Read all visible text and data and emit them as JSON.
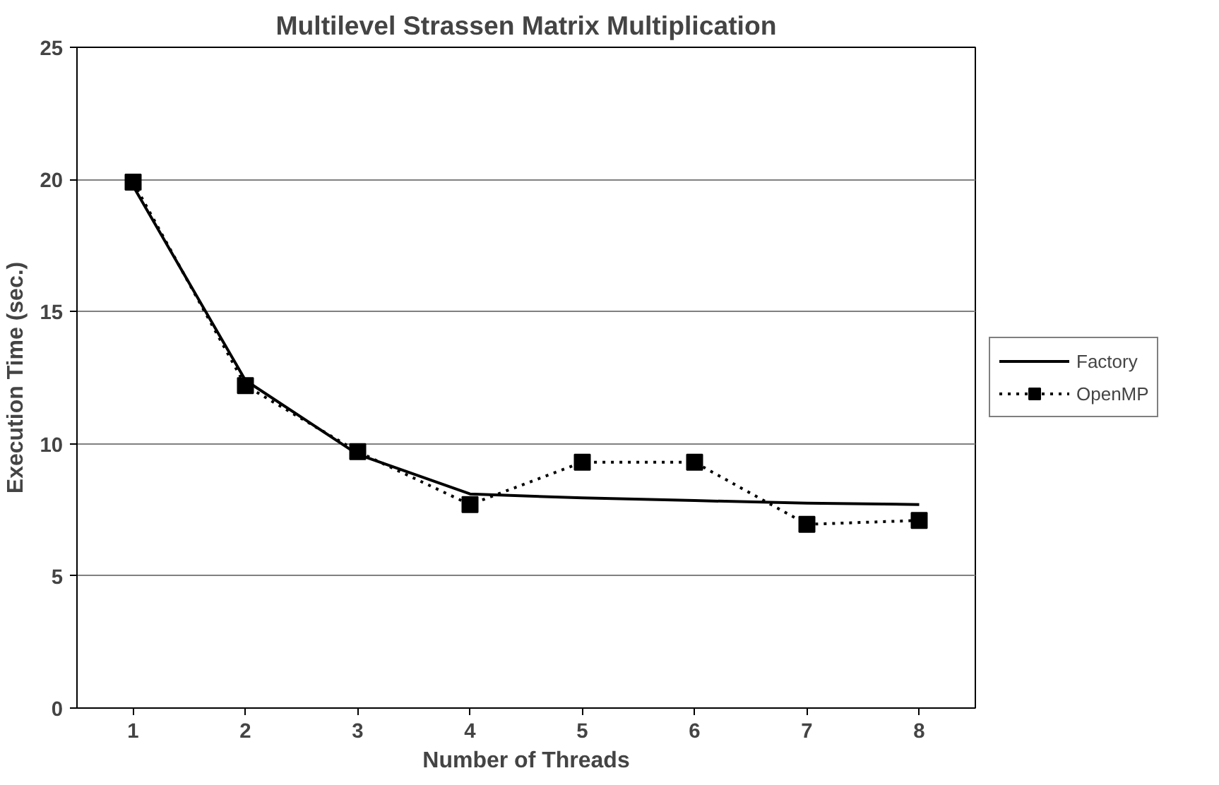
{
  "chart_data": {
    "type": "line",
    "title": "Multilevel Strassen Matrix Multiplication",
    "xlabel": "Number of Threads",
    "ylabel": "Execution Time (sec.)",
    "categories": [
      "1",
      "2",
      "3",
      "4",
      "5",
      "6",
      "7",
      "8"
    ],
    "series": [
      {
        "name": "Factory",
        "color": "#000000",
        "line_style": "solid",
        "marker": "none",
        "values": [
          19.75,
          12.4,
          9.6,
          8.1,
          7.95,
          7.85,
          7.75,
          7.7
        ]
      },
      {
        "name": "OpenMP",
        "color": "#000000",
        "line_style": "dotted",
        "marker": "square",
        "values": [
          19.9,
          12.2,
          9.7,
          7.7,
          9.3,
          9.3,
          6.95,
          7.1
        ]
      }
    ],
    "ylim": [
      0,
      25
    ],
    "yticks": [
      0,
      5,
      10,
      15,
      20,
      25
    ],
    "grid": "y",
    "legend": "right"
  }
}
